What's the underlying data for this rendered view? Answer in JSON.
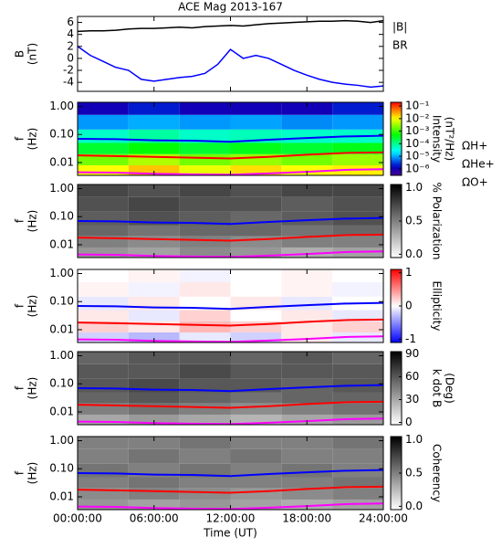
{
  "chart_data": [
    {
      "type": "line",
      "title": "ACE Mag 2013-167",
      "ylabel": [
        "B",
        "(nT)"
      ],
      "xlim": [
        0,
        24
      ],
      "ylim": [
        -5.5,
        7
      ],
      "yticks": [
        -4,
        -2,
        0,
        2,
        4,
        6
      ],
      "x": [
        0,
        1,
        2,
        3,
        4,
        5,
        6,
        7,
        8,
        9,
        10,
        11,
        12,
        13,
        14,
        15,
        16,
        17,
        18,
        19,
        20,
        21,
        22,
        23,
        24
      ],
      "series": [
        {
          "name": "|B|",
          "color": "#000000",
          "values": [
            4.5,
            4.6,
            4.6,
            4.7,
            4.9,
            5.0,
            5.0,
            5.1,
            5.2,
            5.1,
            5.3,
            5.4,
            5.5,
            5.4,
            5.6,
            5.8,
            5.9,
            6.0,
            6.1,
            6.2,
            6.2,
            6.3,
            6.2,
            6.0,
            6.3
          ]
        },
        {
          "name": "BR",
          "color": "#0000ff",
          "values": [
            2.0,
            0.5,
            -0.5,
            -1.5,
            -2.0,
            -3.5,
            -3.8,
            -3.5,
            -3.2,
            -3.0,
            -2.5,
            -1.0,
            1.5,
            0.0,
            0.5,
            0.0,
            -1.0,
            -2.0,
            -2.8,
            -3.5,
            -4.0,
            -4.3,
            -4.5,
            -4.8,
            -4.6
          ]
        }
      ]
    },
    {
      "type": "heatmap",
      "ylabel": [
        "f",
        "(Hz)"
      ],
      "xlim": [
        0,
        24
      ],
      "ylim": [
        0.0035,
        1.4
      ],
      "log_y": true,
      "yticks": [
        0.01,
        {
          "value": 0.1,
          "label": "0.10"
        },
        {
          "value": 1,
          "label": "1.00"
        }
      ],
      "x_edges": [
        0,
        4,
        8,
        12,
        16,
        20,
        24
      ],
      "y_edges": [
        0.0035,
        0.008,
        0.02,
        0.05,
        0.15,
        0.5,
        1.4
      ],
      "z": [
        [
          0.01,
          0.02,
          0.008,
          0.015,
          0.01,
          0.012
        ],
        [
          0.002,
          0.004,
          0.002,
          0.003,
          0.002,
          0.003
        ],
        [
          0.0003,
          0.0005,
          0.0003,
          0.0004,
          0.0003,
          0.0004
        ],
        [
          5e-05,
          8e-05,
          5e-05,
          6e-05,
          5e-05,
          5e-05
        ],
        [
          8e-06,
          1e-05,
          8e-06,
          9e-06,
          7e-06,
          8e-06
        ],
        [
          1e-06,
          2e-06,
          1e-06,
          1e-06,
          1e-06,
          2e-06
        ]
      ],
      "colormap": "rainbow",
      "log_color": true,
      "clim": [
        3e-07,
        0.2
      ],
      "cticks": [
        {
          "value": 0.1,
          "label": "10⁻¹"
        },
        {
          "value": 0.01,
          "label": "10⁻²"
        },
        {
          "value": 0.001,
          "label": "10⁻³"
        },
        {
          "value": 0.0001,
          "label": "10⁻⁴"
        },
        {
          "value": 1e-05,
          "label": "10⁻⁵"
        },
        {
          "value": 1e-06,
          "label": "10⁻⁶"
        }
      ],
      "clabel": [
        "Intensity",
        "(nT²/Hz)"
      ],
      "x": [
        0,
        3,
        6,
        9,
        12,
        15,
        18,
        21,
        24
      ],
      "series": [
        {
          "name": "ΩH+",
          "color": "#0000ff",
          "values": [
            0.07,
            0.068,
            0.062,
            0.06,
            0.055,
            0.065,
            0.075,
            0.085,
            0.09
          ]
        },
        {
          "name": "ΩHe+",
          "color": "#ff0000",
          "values": [
            0.018,
            0.017,
            0.016,
            0.015,
            0.014,
            0.016,
            0.019,
            0.022,
            0.023
          ]
        },
        {
          "name": "ΩO+",
          "color": "#ff00ff",
          "values": [
            0.0045,
            0.0044,
            0.004,
            0.0038,
            0.0037,
            0.0041,
            0.0047,
            0.0055,
            0.0058
          ]
        }
      ]
    },
    {
      "type": "heatmap",
      "ylabel": [
        "f",
        "(Hz)"
      ],
      "xlim": [
        0,
        24
      ],
      "ylim": [
        0.0035,
        1.4
      ],
      "log_y": true,
      "yticks": [
        0.01,
        {
          "value": 0.1,
          "label": "0.10"
        },
        {
          "value": 1,
          "label": "1.00"
        }
      ],
      "x_edges": [
        0,
        4,
        8,
        12,
        16,
        20,
        24
      ],
      "y_edges": [
        0.0035,
        0.008,
        0.02,
        0.05,
        0.15,
        0.5,
        1.4
      ],
      "z": [
        [
          0.4,
          0.35,
          0.45,
          0.4,
          0.3,
          0.35
        ],
        [
          0.5,
          0.45,
          0.5,
          0.45,
          0.5,
          0.5
        ],
        [
          0.6,
          0.55,
          0.6,
          0.6,
          0.55,
          0.6
        ],
        [
          0.65,
          0.7,
          0.65,
          0.6,
          0.65,
          0.7
        ],
        [
          0.7,
          0.75,
          0.7,
          0.7,
          0.65,
          0.7
        ],
        [
          0.75,
          0.7,
          0.75,
          0.7,
          0.75,
          0.75
        ]
      ],
      "colormap": "gray",
      "clim": [
        -0.05,
        1.05
      ],
      "cticks": [
        {
          "value": 0,
          "label": "0.0"
        },
        {
          "value": 0.5,
          "label": "0.5"
        },
        {
          "value": 1,
          "label": "1.0"
        }
      ],
      "clabel": [
        "% Polarization"
      ],
      "x": [
        0,
        3,
        6,
        9,
        12,
        15,
        18,
        21,
        24
      ],
      "series": [
        {
          "color": "#0000ff",
          "values": [
            0.07,
            0.068,
            0.062,
            0.06,
            0.055,
            0.065,
            0.075,
            0.085,
            0.09
          ]
        },
        {
          "color": "#ff0000",
          "values": [
            0.018,
            0.017,
            0.016,
            0.015,
            0.014,
            0.016,
            0.019,
            0.022,
            0.023
          ]
        },
        {
          "color": "#ff00ff",
          "values": [
            0.0045,
            0.0044,
            0.004,
            0.0038,
            0.0037,
            0.0041,
            0.0047,
            0.0055,
            0.0058
          ]
        }
      ]
    },
    {
      "type": "heatmap",
      "ylabel": [
        "f",
        "(Hz)"
      ],
      "xlim": [
        0,
        24
      ],
      "ylim": [
        0.0035,
        1.4
      ],
      "log_y": true,
      "yticks": [
        0.01,
        {
          "value": 0.1,
          "label": "0.10"
        },
        {
          "value": 1,
          "label": "1.00"
        }
      ],
      "x_edges": [
        0,
        4,
        8,
        12,
        16,
        20,
        24
      ],
      "y_edges": [
        0.0035,
        0.008,
        0.02,
        0.05,
        0.15,
        0.5,
        1.4
      ],
      "z": [
        [
          -0.2,
          -0.3,
          -0.1,
          -0.2,
          0.1,
          -0.1
        ],
        [
          0.2,
          0.1,
          0.3,
          0.2,
          0.1,
          0.2
        ],
        [
          0.1,
          -0.1,
          0.2,
          0,
          0.1,
          -0.1
        ],
        [
          -0.1,
          0.1,
          0,
          0.1,
          -0.1,
          0
        ],
        [
          0.05,
          -0.05,
          0.1,
          0,
          0.05,
          -0.05
        ],
        [
          0,
          0.05,
          -0.05,
          0,
          0.05,
          0
        ]
      ],
      "colormap": "redblue",
      "clim": [
        -1.1,
        1.1
      ],
      "cticks": [
        -1,
        0,
        1
      ],
      "clabel": [
        "Ellipticity"
      ],
      "x": [
        0,
        3,
        6,
        9,
        12,
        15,
        18,
        21,
        24
      ],
      "series": [
        {
          "color": "#0000ff",
          "values": [
            0.07,
            0.068,
            0.062,
            0.06,
            0.055,
            0.065,
            0.075,
            0.085,
            0.09
          ]
        },
        {
          "color": "#ff0000",
          "values": [
            0.018,
            0.017,
            0.016,
            0.015,
            0.014,
            0.016,
            0.019,
            0.022,
            0.023
          ]
        },
        {
          "color": "#ff00ff",
          "values": [
            0.0045,
            0.0044,
            0.004,
            0.0038,
            0.0037,
            0.0041,
            0.0047,
            0.0055,
            0.0058
          ]
        }
      ]
    },
    {
      "type": "heatmap",
      "ylabel": [
        "f",
        "(Hz)"
      ],
      "xlim": [
        0,
        24
      ],
      "ylim": [
        0.0035,
        1.4
      ],
      "log_y": true,
      "yticks": [
        0.01,
        {
          "value": 0.1,
          "label": "0.10"
        },
        {
          "value": 1,
          "label": "1.00"
        }
      ],
      "x_edges": [
        0,
        4,
        8,
        12,
        16,
        20,
        24
      ],
      "y_edges": [
        0.0035,
        0.008,
        0.02,
        0.05,
        0.15,
        0.5,
        1.4
      ],
      "z": [
        [
          30,
          35,
          30,
          25,
          30,
          35
        ],
        [
          45,
          50,
          45,
          40,
          45,
          50
        ],
        [
          55,
          60,
          55,
          50,
          55,
          55
        ],
        [
          60,
          65,
          60,
          60,
          55,
          60
        ],
        [
          60,
          60,
          65,
          60,
          60,
          60
        ],
        [
          55,
          60,
          60,
          55,
          60,
          55
        ]
      ],
      "colormap": "gray",
      "clim": [
        -3,
        93
      ],
      "cticks": [
        0,
        30,
        60,
        90
      ],
      "clabel": [
        "k dot B",
        "(Deg)"
      ],
      "x": [
        0,
        3,
        6,
        9,
        12,
        15,
        18,
        21,
        24
      ],
      "series": [
        {
          "color": "#0000ff",
          "values": [
            0.07,
            0.068,
            0.062,
            0.06,
            0.055,
            0.065,
            0.075,
            0.085,
            0.09
          ]
        },
        {
          "color": "#ff0000",
          "values": [
            0.018,
            0.017,
            0.016,
            0.015,
            0.014,
            0.016,
            0.019,
            0.022,
            0.023
          ]
        },
        {
          "color": "#ff00ff",
          "values": [
            0.0045,
            0.0044,
            0.004,
            0.0038,
            0.0037,
            0.0041,
            0.0047,
            0.0055,
            0.0058
          ]
        }
      ]
    },
    {
      "type": "heatmap",
      "ylabel": [
        "f",
        "(Hz)"
      ],
      "xlim": [
        0,
        24
      ],
      "ylim": [
        0.0035,
        1.4
      ],
      "log_y": true,
      "yticks": [
        0.01,
        {
          "value": 0.1,
          "label": "0.10"
        },
        {
          "value": 1,
          "label": "1.00"
        }
      ],
      "x_edges": [
        0,
        4,
        8,
        12,
        16,
        20,
        24
      ],
      "y_edges": [
        0.0035,
        0.008,
        0.02,
        0.05,
        0.15,
        0.5,
        1.4
      ],
      "z": [
        [
          0.4,
          0.35,
          0.4,
          0.35,
          0.3,
          0.35
        ],
        [
          0.45,
          0.5,
          0.45,
          0.4,
          0.45,
          0.5
        ],
        [
          0.5,
          0.55,
          0.5,
          0.5,
          0.5,
          0.55
        ],
        [
          0.55,
          0.5,
          0.55,
          0.5,
          0.55,
          0.5
        ],
        [
          0.5,
          0.55,
          0.5,
          0.55,
          0.5,
          0.5
        ],
        [
          0.5,
          0.5,
          0.55,
          0.5,
          0.5,
          0.55
        ]
      ],
      "colormap": "gray",
      "clim": [
        -0.05,
        1.05
      ],
      "cticks": [
        {
          "value": 0,
          "label": "0.0"
        },
        {
          "value": 0.5,
          "label": "0.5"
        },
        {
          "value": 1,
          "label": "1.0"
        }
      ],
      "clabel": [
        "Coherency"
      ],
      "x": [
        0,
        3,
        6,
        9,
        12,
        15,
        18,
        21,
        24
      ],
      "series": [
        {
          "color": "#0000ff",
          "values": [
            0.07,
            0.068,
            0.062,
            0.06,
            0.055,
            0.065,
            0.075,
            0.085,
            0.09
          ]
        },
        {
          "color": "#ff0000",
          "values": [
            0.018,
            0.017,
            0.016,
            0.015,
            0.014,
            0.016,
            0.019,
            0.022,
            0.023
          ]
        },
        {
          "color": "#ff00ff",
          "values": [
            0.0045,
            0.0044,
            0.004,
            0.0038,
            0.0037,
            0.0041,
            0.0047,
            0.0055,
            0.0058
          ]
        }
      ],
      "xticks": [
        {
          "value": 0,
          "label": "00:00:00"
        },
        {
          "value": 6,
          "label": "06:00:00"
        },
        {
          "value": 12,
          "label": "12:00:00"
        },
        {
          "value": 18,
          "label": "18:00:00"
        },
        {
          "value": 24,
          "label": "24:00:00"
        }
      ],
      "xlabel": "Time (UT)"
    }
  ]
}
